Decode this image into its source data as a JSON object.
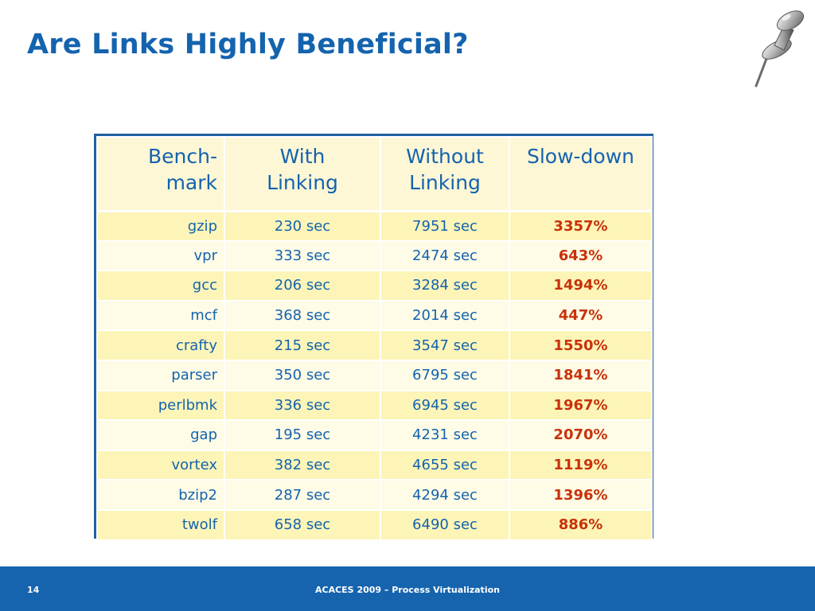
{
  "slide": {
    "title": "Are Links Highly Beneficial?",
    "page_number": "14",
    "footer_text": "ACACES 2009 – Process Virtualization"
  },
  "decoration": {
    "icon": "pushpin-icon"
  },
  "table": {
    "headers": {
      "benchmark_line1": "Bench-",
      "benchmark_line2": "mark",
      "with_line1": "With",
      "with_line2": "Linking",
      "without_line1": "Without",
      "without_line2": "Linking",
      "slowdown": "Slow-down"
    },
    "rows": [
      {
        "benchmark": "gzip",
        "with_linking": "230 sec",
        "without_linking": "7951 sec",
        "slowdown": "3357%"
      },
      {
        "benchmark": "vpr",
        "with_linking": "333 sec",
        "without_linking": "2474 sec",
        "slowdown": "643%"
      },
      {
        "benchmark": "gcc",
        "with_linking": "206 sec",
        "without_linking": "3284 sec",
        "slowdown": "1494%"
      },
      {
        "benchmark": "mcf",
        "with_linking": "368 sec",
        "without_linking": "2014 sec",
        "slowdown": "447%"
      },
      {
        "benchmark": "crafty",
        "with_linking": "215 sec",
        "without_linking": "3547 sec",
        "slowdown": "1550%"
      },
      {
        "benchmark": "parser",
        "with_linking": "350 sec",
        "without_linking": "6795 sec",
        "slowdown": "1841%"
      },
      {
        "benchmark": "perlbmk",
        "with_linking": "336 sec",
        "without_linking": "6945 sec",
        "slowdown": "1967%"
      },
      {
        "benchmark": "gap",
        "with_linking": "195 sec",
        "without_linking": "4231 sec",
        "slowdown": "2070%"
      },
      {
        "benchmark": "vortex",
        "with_linking": "382 sec",
        "without_linking": "4655 sec",
        "slowdown": "1119%"
      },
      {
        "benchmark": "bzip2",
        "with_linking": "287 sec",
        "without_linking": "4294 sec",
        "slowdown": "1396%"
      },
      {
        "benchmark": "twolf",
        "with_linking": "658 sec",
        "without_linking": "6490 sec",
        "slowdown": "886%"
      }
    ]
  },
  "colors": {
    "title_blue": "#1463ae",
    "footer_blue": "#1664ae",
    "table_border": "#1f5fa0",
    "row_yellow": "#fdf5b8",
    "row_light": "#fefbe6",
    "slowdown_red": "#c8320a"
  }
}
